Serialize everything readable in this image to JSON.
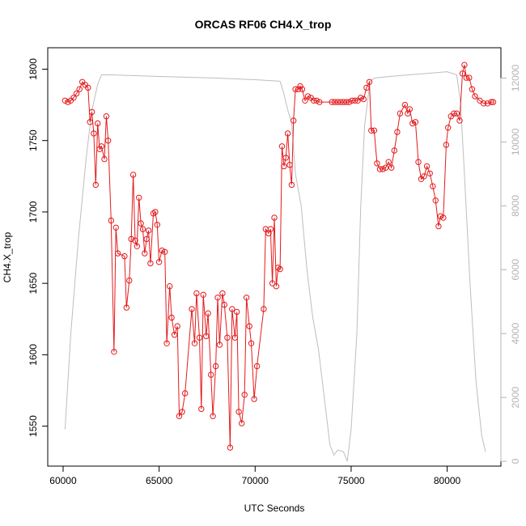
{
  "chart_data": {
    "type": "line",
    "title": "ORCAS RF06 CH4.X_trop",
    "xlabel": "UTC Seconds",
    "ylabel": "CH4.X_trop",
    "xlim": [
      59200,
      82800
    ],
    "ylim": [
      1522,
      1815
    ],
    "y2lim": [
      -150,
      12950
    ],
    "x_ticks": [
      60000,
      65000,
      70000,
      75000,
      80000
    ],
    "y_ticks": [
      1550,
      1600,
      1650,
      1700,
      1750,
      1800
    ],
    "y2_ticks": [
      0,
      2000,
      4000,
      6000,
      8000,
      10000,
      12000
    ],
    "grid": false,
    "series": [
      {
        "axis": "left",
        "color": "#e41a1c",
        "markers": "open-circle",
        "points": [
          [
            60100,
            1778
          ],
          [
            60250,
            1777
          ],
          [
            60400,
            1778
          ],
          [
            60550,
            1780
          ],
          [
            60700,
            1783
          ],
          [
            60850,
            1786
          ],
          [
            61000,
            1791
          ],
          [
            61150,
            1789
          ],
          [
            61300,
            1787
          ],
          [
            61400,
            1763
          ],
          [
            61500,
            1770
          ],
          [
            61600,
            1755
          ],
          [
            61700,
            1719
          ],
          [
            61800,
            1762
          ],
          [
            61900,
            1744
          ],
          [
            62000,
            1746
          ],
          [
            62150,
            1737
          ],
          [
            62250,
            1767
          ],
          [
            62350,
            1750
          ],
          [
            62500,
            1694
          ],
          [
            62650,
            1602
          ],
          [
            62750,
            1689
          ],
          [
            62850,
            1671
          ],
          [
            63200,
            1669
          ],
          [
            63300,
            1633
          ],
          [
            63450,
            1652
          ],
          [
            63550,
            1681
          ],
          [
            63650,
            1726
          ],
          [
            63750,
            1680
          ],
          [
            63850,
            1676
          ],
          [
            63950,
            1710
          ],
          [
            64050,
            1692
          ],
          [
            64150,
            1688
          ],
          [
            64250,
            1671
          ],
          [
            64350,
            1681
          ],
          [
            64450,
            1687
          ],
          [
            64550,
            1664
          ],
          [
            64700,
            1699
          ],
          [
            64800,
            1700
          ],
          [
            64900,
            1691
          ],
          [
            65000,
            1665
          ],
          [
            65150,
            1673
          ],
          [
            65300,
            1672
          ],
          [
            65400,
            1608
          ],
          [
            65550,
            1648
          ],
          [
            65650,
            1626
          ],
          [
            65800,
            1614
          ],
          [
            65950,
            1620
          ],
          [
            66050,
            1557
          ],
          [
            66200,
            1560
          ],
          [
            66350,
            1573
          ],
          [
            66700,
            1632
          ],
          [
            66850,
            1608
          ],
          [
            66950,
            1643
          ],
          [
            67100,
            1612
          ],
          [
            67200,
            1562
          ],
          [
            67300,
            1642
          ],
          [
            67450,
            1613
          ],
          [
            67550,
            1629
          ],
          [
            67700,
            1586
          ],
          [
            67800,
            1557
          ],
          [
            67950,
            1592
          ],
          [
            68050,
            1640
          ],
          [
            68150,
            1607
          ],
          [
            68300,
            1643
          ],
          [
            68400,
            1635
          ],
          [
            68550,
            1612
          ],
          [
            68700,
            1535
          ],
          [
            68800,
            1632
          ],
          [
            68950,
            1612
          ],
          [
            69050,
            1630
          ],
          [
            69150,
            1560
          ],
          [
            69300,
            1552
          ],
          [
            69450,
            1572
          ],
          [
            69550,
            1640
          ],
          [
            69700,
            1620
          ],
          [
            69800,
            1608
          ],
          [
            69950,
            1569
          ],
          [
            70100,
            1592
          ],
          [
            70450,
            1632
          ],
          [
            70550,
            1688
          ],
          [
            70700,
            1685
          ],
          [
            70800,
            1688
          ],
          [
            70900,
            1650
          ],
          [
            71000,
            1696
          ],
          [
            71100,
            1648
          ],
          [
            71200,
            1661
          ],
          [
            71300,
            1660
          ],
          [
            71400,
            1746
          ],
          [
            71500,
            1732
          ],
          [
            71600,
            1738
          ],
          [
            71700,
            1755
          ],
          [
            71800,
            1733
          ],
          [
            71900,
            1719
          ],
          [
            72000,
            1764
          ],
          [
            72100,
            1786
          ],
          [
            72250,
            1786
          ],
          [
            72350,
            1788
          ],
          [
            72450,
            1786
          ],
          [
            72600,
            1778
          ],
          [
            72750,
            1781
          ],
          [
            72900,
            1780
          ],
          [
            73050,
            1778
          ],
          [
            73200,
            1778
          ],
          [
            73350,
            1777
          ],
          [
            74000,
            1777
          ],
          [
            74150,
            1777
          ],
          [
            74300,
            1777
          ],
          [
            74450,
            1777
          ],
          [
            74600,
            1777
          ],
          [
            74750,
            1777
          ],
          [
            74900,
            1777
          ],
          [
            75050,
            1778
          ],
          [
            75200,
            1778
          ],
          [
            75350,
            1778
          ],
          [
            75500,
            1780
          ],
          [
            75650,
            1779
          ],
          [
            75800,
            1787
          ],
          [
            75950,
            1791
          ],
          [
            76050,
            1757
          ],
          [
            76200,
            1757
          ],
          [
            76350,
            1734
          ],
          [
            76500,
            1730
          ],
          [
            76650,
            1730
          ],
          [
            76800,
            1731
          ],
          [
            76950,
            1735
          ],
          [
            77100,
            1731
          ],
          [
            77250,
            1743
          ],
          [
            77400,
            1756
          ],
          [
            77550,
            1769
          ],
          [
            77800,
            1775
          ],
          [
            77950,
            1769
          ],
          [
            78050,
            1772
          ],
          [
            78200,
            1762
          ],
          [
            78350,
            1763
          ],
          [
            78500,
            1735
          ],
          [
            78650,
            1723
          ],
          [
            78800,
            1725
          ],
          [
            78950,
            1732
          ],
          [
            79100,
            1727
          ],
          [
            79250,
            1718
          ],
          [
            79400,
            1708
          ],
          [
            79550,
            1690
          ],
          [
            79650,
            1697
          ],
          [
            79800,
            1696
          ],
          [
            79950,
            1747
          ],
          [
            80050,
            1759
          ],
          [
            80200,
            1767
          ],
          [
            80350,
            1769
          ],
          [
            80500,
            1769
          ],
          [
            80650,
            1764
          ],
          [
            80800,
            1797
          ],
          [
            80900,
            1803
          ],
          [
            81000,
            1794
          ],
          [
            81150,
            1794
          ],
          [
            81300,
            1786
          ],
          [
            81450,
            1781
          ],
          [
            81700,
            1778
          ],
          [
            81900,
            1776
          ],
          [
            82100,
            1776
          ],
          [
            82300,
            1777
          ],
          [
            82400,
            1777
          ]
        ]
      },
      {
        "axis": "right",
        "color": "#bebebe",
        "markers": "none",
        "points": [
          [
            60100,
            1000
          ],
          [
            60400,
            4000
          ],
          [
            60800,
            7000
          ],
          [
            61200,
            9500
          ],
          [
            61500,
            11000
          ],
          [
            61800,
            11800
          ],
          [
            62000,
            12100
          ],
          [
            62500,
            12100
          ],
          [
            65000,
            12050
          ],
          [
            68000,
            12000
          ],
          [
            70000,
            11950
          ],
          [
            71300,
            11900
          ],
          [
            71500,
            11500
          ],
          [
            71700,
            11000
          ],
          [
            71900,
            10600
          ],
          [
            72100,
            9000
          ],
          [
            72400,
            8000
          ],
          [
            72700,
            6000
          ],
          [
            73000,
            4500
          ],
          [
            73300,
            3500
          ],
          [
            73600,
            2000
          ],
          [
            73900,
            500
          ],
          [
            74100,
            200
          ],
          [
            74300,
            350
          ],
          [
            74600,
            300
          ],
          [
            74800,
            0
          ],
          [
            75000,
            1000
          ],
          [
            75300,
            4000
          ],
          [
            75500,
            8000
          ],
          [
            75700,
            10500
          ],
          [
            75900,
            11500
          ],
          [
            76000,
            11900
          ],
          [
            76200,
            12000
          ],
          [
            77000,
            12050
          ],
          [
            78000,
            12100
          ],
          [
            79000,
            12150
          ],
          [
            80000,
            12200
          ],
          [
            80500,
            12100
          ],
          [
            80700,
            11200
          ],
          [
            80900,
            9000
          ],
          [
            81200,
            5500
          ],
          [
            81500,
            2500
          ],
          [
            81800,
            800
          ],
          [
            82000,
            300
          ]
        ]
      }
    ]
  }
}
